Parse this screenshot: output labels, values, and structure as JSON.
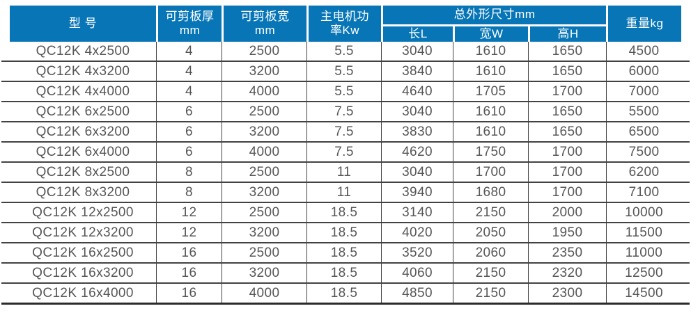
{
  "colors": {
    "header_background": "#0876b6",
    "header_text": "#ffffff",
    "body_text": "#565656",
    "grid_line": "#424242",
    "bottom_border": "#2b2b2b"
  },
  "table": {
    "header": {
      "model": "型 号",
      "shear_thickness_line1": "可剪板厚",
      "shear_thickness_line2": "mm",
      "shear_width_line1": "可剪板宽",
      "shear_width_line2": "mm",
      "motor_power_line1": "主电机功",
      "motor_power_line2": "率Kw",
      "overall_dimensions": "总外形尺寸mm",
      "dim_length": "长L",
      "dim_width": "宽W",
      "dim_height": "高H",
      "weight": "重量kg"
    },
    "rows": [
      [
        "QC12K 4x2500",
        "4",
        "2500",
        "5.5",
        "3040",
        "1610",
        "1650",
        "4500"
      ],
      [
        "QC12K 4x3200",
        "4",
        "3200",
        "5.5",
        "3840",
        "1610",
        "1650",
        "6000"
      ],
      [
        "QC12K 4x4000",
        "4",
        "4000",
        "5.5",
        "4640",
        "1705",
        "1700",
        "7000"
      ],
      [
        "QC12K 6x2500",
        "6",
        "2500",
        "7.5",
        "3040",
        "1610",
        "1650",
        "5500"
      ],
      [
        "QC12K 6x3200",
        "6",
        "3200",
        "7.5",
        "3830",
        "1610",
        "1650",
        "6500"
      ],
      [
        "QC12K 6x4000",
        "6",
        "4000",
        "7.5",
        "4620",
        "1750",
        "1700",
        "7500"
      ],
      [
        "QC12K 8x2500",
        "8",
        "2500",
        "11",
        "3040",
        "1700",
        "1700",
        "6200"
      ],
      [
        "QC12K 8x3200",
        "8",
        "3200",
        "11",
        "3940",
        "1680",
        "1700",
        "7100"
      ],
      [
        "QC12K 12x2500",
        "12",
        "2500",
        "18.5",
        "3140",
        "2150",
        "2000",
        "10000"
      ],
      [
        "QC12K 12x3200",
        "12",
        "3200",
        "18.5",
        "4020",
        "2050",
        "1950",
        "11500"
      ],
      [
        "QC12K 16x2500",
        "16",
        "2500",
        "18.5",
        "3520",
        "2060",
        "2350",
        "11000"
      ],
      [
        "QC12K 16x3200",
        "16",
        "3200",
        "18.5",
        "4060",
        "2150",
        "2320",
        "12500"
      ],
      [
        "QC12K 16x4000",
        "16",
        "4000",
        "18.5",
        "4850",
        "2150",
        "2300",
        "14500"
      ]
    ]
  }
}
